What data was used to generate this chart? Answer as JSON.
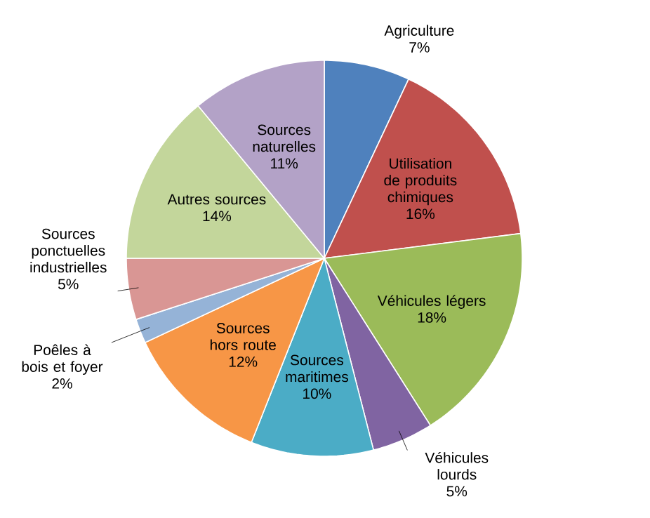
{
  "chart_data": {
    "type": "pie",
    "categories": [
      "Agriculture",
      "Utilisation de produits chimiques",
      "Véhicules légers",
      "Véhicules lourds",
      "Sources maritimes",
      "Sources hors route",
      "Poêles à bois et foyer",
      "Sources ponctuelles industrielles",
      "Autres sources",
      "Sources naturelles"
    ],
    "values": [
      7,
      16,
      18,
      5,
      10,
      12,
      2,
      5,
      14,
      11
    ],
    "value_labels": [
      "7%",
      "16%",
      "18%",
      "5%",
      "10%",
      "12%",
      "2%",
      "5%",
      "14%",
      "11%"
    ],
    "colors": [
      "#4f81bd",
      "#c0504d",
      "#9bbb59",
      "#8064a2",
      "#4bacc6",
      "#f79646",
      "#95b3d7",
      "#d99694",
      "#c3d69b",
      "#b3a2c7"
    ]
  }
}
